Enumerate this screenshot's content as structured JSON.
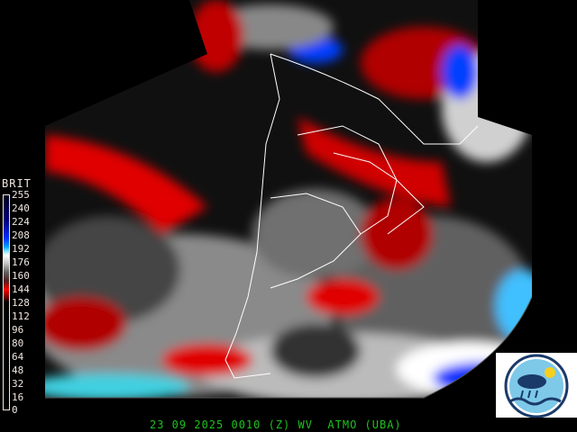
{
  "colorbar": {
    "title": "BRIT",
    "ticks": [
      "255",
      "240",
      "224",
      "208",
      "192",
      "176",
      "160",
      "144",
      "128",
      "112",
      "96",
      "80",
      "64",
      "48",
      "32",
      "16",
      "0"
    ]
  },
  "caption": "23 09 2025 0010 (Z) WV  ATMO (UBA)",
  "logo": {
    "icon": "weather-sun-cloud-rain-wave-logo"
  },
  "colors": {
    "caption": "#20c020",
    "moist": "#0030ff",
    "dry": "#ff0000"
  }
}
